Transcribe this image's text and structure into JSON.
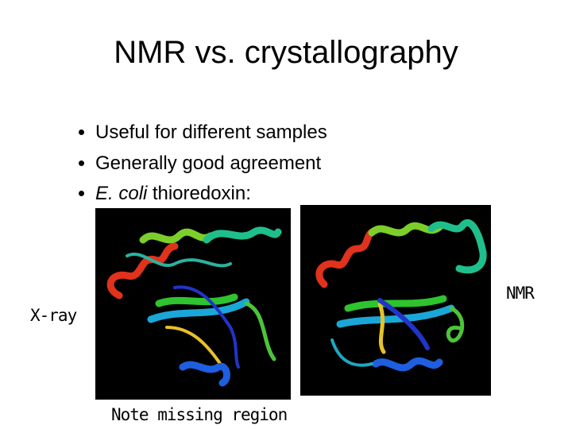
{
  "title": "NMR vs. crystallography",
  "bullets": [
    "Useful for different samples",
    "Generally good agreement",
    {
      "italic": "E. coli",
      "text": "thioredoxin:"
    }
  ],
  "labels": {
    "xray": "X-ray",
    "nmr": "NMR",
    "note": "Note missing region"
  }
}
